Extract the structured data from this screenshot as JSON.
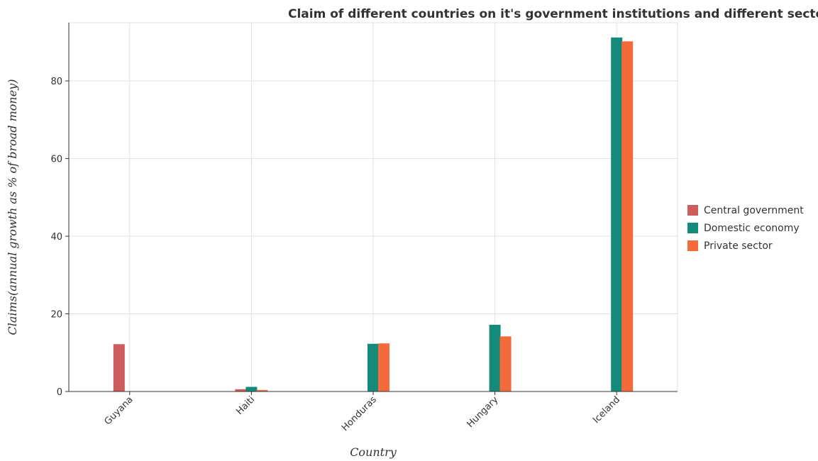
{
  "chart_data": {
    "type": "bar",
    "title": "Claim of different countries on it's government institutions and different sectors",
    "xlabel": "Country",
    "ylabel": "Claims(annual growth as % of broad money)",
    "categories": [
      "Guyana",
      "Haiti",
      "Honduras",
      "Hungary",
      "Iceland"
    ],
    "series": [
      {
        "name": "Central government",
        "color": "#cd5c5c",
        "values": [
          12.1,
          0.5,
          0,
          0,
          0
        ]
      },
      {
        "name": "Domestic economy",
        "color": "#138a7a",
        "values": [
          0,
          1.1,
          12.2,
          17.1,
          91.1
        ]
      },
      {
        "name": "Private sector",
        "color": "#f56a3a",
        "values": [
          0,
          0.3,
          12.3,
          14.1,
          90.1
        ]
      }
    ],
    "ylim": [
      0,
      95
    ],
    "yticks": [
      0,
      20,
      40,
      60,
      80
    ],
    "ytick_labels": [
      "0",
      "20",
      "40",
      "60",
      "80"
    ],
    "grid": true,
    "legend_position": "right"
  }
}
